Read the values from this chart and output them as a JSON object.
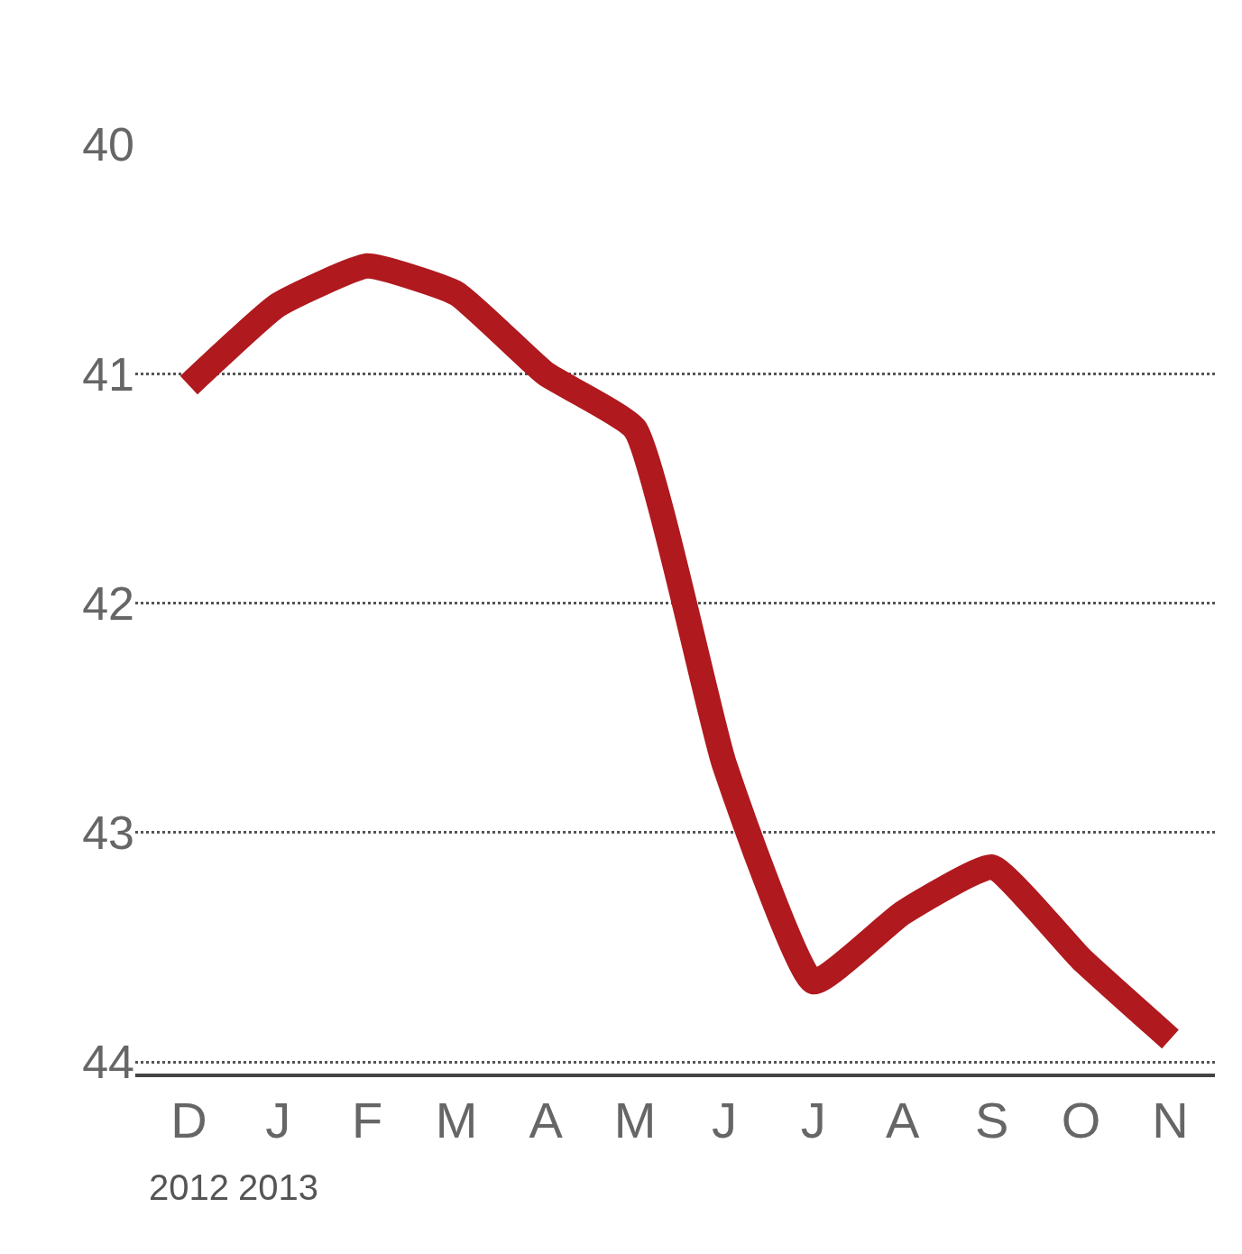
{
  "chart_data": {
    "type": "line",
    "categories": [
      "D",
      "J",
      "F",
      "M",
      "A",
      "M",
      "J",
      "J",
      "A",
      "S",
      "O",
      "N"
    ],
    "series": [
      {
        "color": "#b0191e",
        "values": [
          41.05,
          40.7,
          40.53,
          40.65,
          41.0,
          41.24,
          42.7,
          43.65,
          43.35,
          43.15,
          43.55,
          43.9
        ]
      }
    ],
    "ylim": [
      44.05,
      40
    ],
    "yticks": [
      40,
      41,
      42,
      43,
      44
    ],
    "grid": "y",
    "legend": false,
    "marker": "none",
    "line_style": "solid",
    "annotations": [
      "2012",
      "2013"
    ]
  }
}
